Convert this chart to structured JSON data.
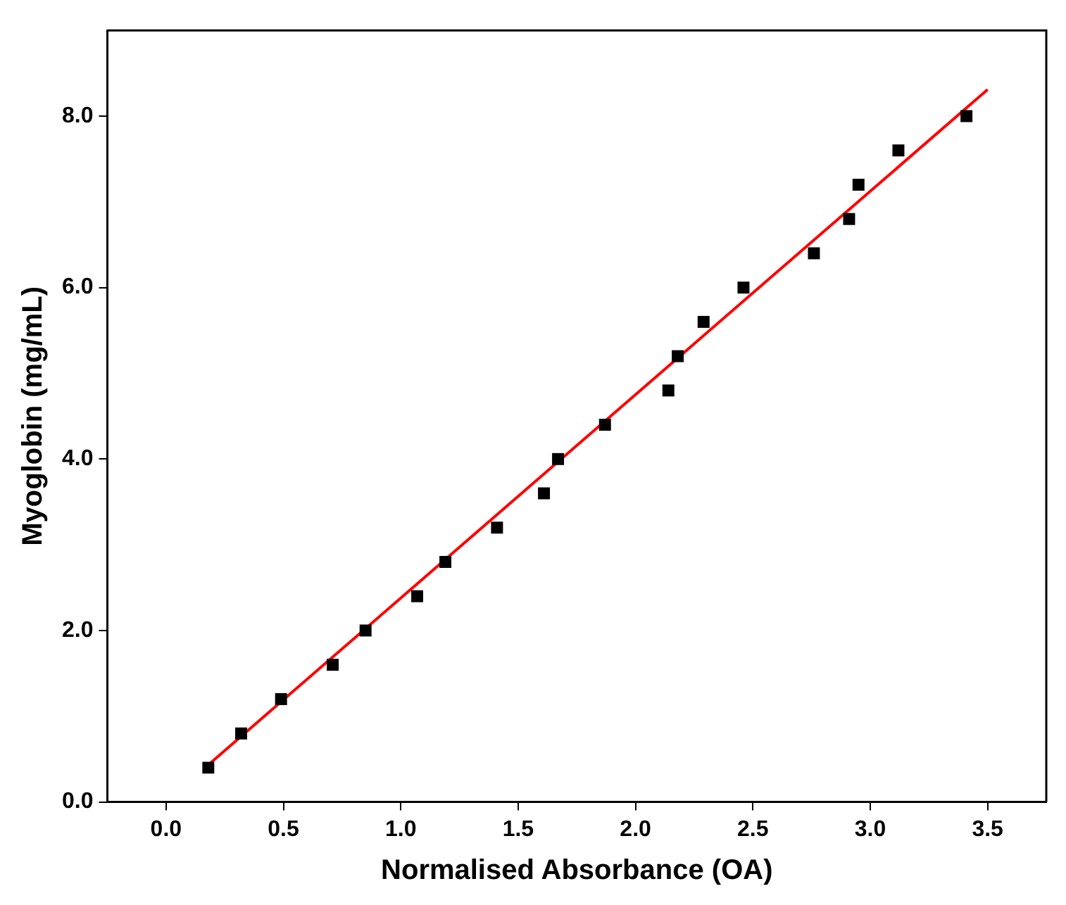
{
  "chart_data": {
    "type": "scatter",
    "xlabel": "Normalised Absorbance (OA)",
    "ylabel": "Myoglobin (mg/mL)",
    "xlim": [
      -0.25,
      3.75
    ],
    "ylim": [
      0,
      9
    ],
    "xticks": [
      {
        "value": 0,
        "label": "0.0"
      },
      {
        "value": 0.5,
        "label": "0.5"
      },
      {
        "value": 1,
        "label": "1.0"
      },
      {
        "value": 1.5,
        "label": "1.5"
      },
      {
        "value": 2,
        "label": "2.0"
      },
      {
        "value": 2.5,
        "label": "2.5"
      },
      {
        "value": 3,
        "label": "3.0"
      },
      {
        "value": 3.5,
        "label": "3.5"
      }
    ],
    "yticks": [
      {
        "value": 0,
        "label": "0.0"
      },
      {
        "value": 2,
        "label": "2.0"
      },
      {
        "value": 4,
        "label": "4.0"
      },
      {
        "value": 6,
        "label": "6.0"
      },
      {
        "value": 8,
        "label": "8.0"
      }
    ],
    "grid": false,
    "legend": false,
    "series": [
      {
        "marker": "square",
        "color": "#000000",
        "x": [
          0.18,
          0.32,
          0.49,
          0.71,
          0.85,
          1.07,
          1.19,
          1.41,
          1.61,
          1.67,
          1.87,
          2.14,
          2.18,
          2.29,
          2.46,
          2.76,
          2.91,
          2.95,
          3.12,
          3.41
        ],
        "values": [
          0.4,
          0.8,
          1.2,
          1.6,
          2.0,
          2.4,
          2.8,
          3.2,
          3.6,
          4.0,
          4.4,
          4.8,
          5.2,
          5.6,
          6.0,
          6.4,
          6.8,
          7.2,
          7.6,
          8.0
        ]
      },
      {
        "type": "line",
        "marker": "none",
        "line_style": "solid",
        "color": "#ff0000",
        "x": [
          0.17,
          3.5
        ],
        "values": [
          0.41,
          8.31
        ]
      }
    ]
  }
}
